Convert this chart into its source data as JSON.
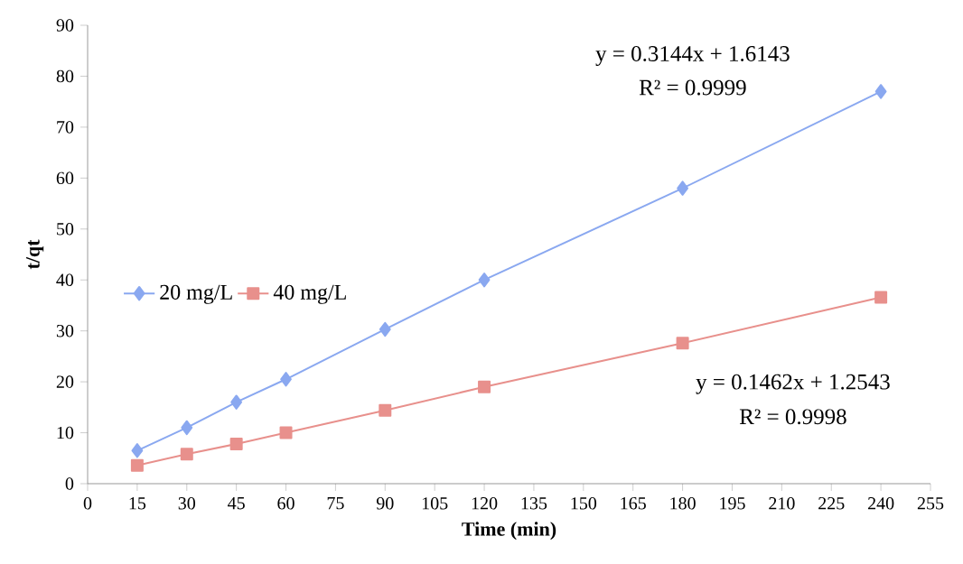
{
  "chart_data": {
    "type": "line",
    "xlabel": "Time (min)",
    "ylabel": "t/qt",
    "x": [
      15,
      30,
      45,
      60,
      90,
      120,
      180,
      240
    ],
    "series": [
      {
        "name": "20 mg/L",
        "color": "#8aa8f0",
        "marker": "diamond",
        "values": [
          6.5,
          11,
          16,
          20.5,
          30.3,
          40,
          58,
          77
        ]
      },
      {
        "name": "40 mg/L",
        "color": "#e8908c",
        "marker": "square",
        "values": [
          3.6,
          5.8,
          7.8,
          10,
          14.4,
          19,
          27.6,
          36.6
        ]
      }
    ],
    "xlim": [
      0,
      255
    ],
    "xticks": [
      0,
      15,
      30,
      45,
      60,
      75,
      90,
      105,
      120,
      135,
      150,
      165,
      180,
      195,
      210,
      225,
      240,
      255
    ],
    "ylim": [
      0,
      90
    ],
    "yticks": [
      0,
      10,
      20,
      30,
      40,
      50,
      60,
      70,
      80,
      90
    ],
    "grid": false,
    "legend": "left",
    "line_style": "solid",
    "annotations": [
      "y = 0.3144x + 1.6143",
      "R² = 0.9999",
      "y = 0.1462x + 1.2543",
      "R² = 0.9998"
    ]
  }
}
